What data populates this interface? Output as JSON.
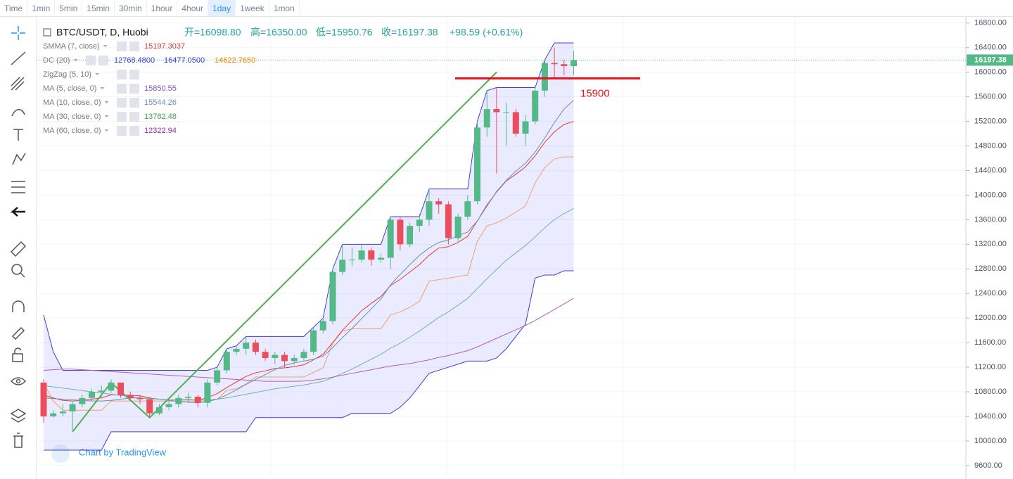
{
  "toolbar": {
    "items": [
      "Time",
      "1min",
      "5min",
      "15min",
      "30min",
      "1hour",
      "4hour",
      "1day",
      "1week",
      "1mon"
    ]
  },
  "legend": {
    "symbol": "BTC/USDT, D, Huobi",
    "ohlc": [
      "开=16098.80",
      "高=16350.00",
      "低=15950.76",
      "收=16197.38"
    ],
    "change": "+98.59 (+0.61%)",
    "indicators": [
      {
        "name": "SMMA (7, close)",
        "values": [
          "15197.3037"
        ],
        "colors": [
          "#e53935"
        ]
      },
      {
        "name": "DC (20)",
        "values": [
          "12768.4800",
          "16477.0500",
          "14622.7650"
        ],
        "colors": [
          "#2f3fd6",
          "#2f3fd6",
          "#f57c00"
        ]
      },
      {
        "name": "ZigZag (5, 10)",
        "values": [],
        "colors": []
      },
      {
        "name": "MA (5, close, 0)",
        "values": [
          "15850.55"
        ],
        "colors": [
          "#7e57c2"
        ]
      },
      {
        "name": "MA (10, close, 0)",
        "values": [
          "15544.26"
        ],
        "colors": [
          "#6a8fb5"
        ]
      },
      {
        "name": "MA (30, close, 0)",
        "values": [
          "13782.48"
        ],
        "colors": [
          "#43a047"
        ]
      },
      {
        "name": "MA (60, close, 0)",
        "values": [
          "12322.94"
        ],
        "colors": [
          "#9c27b0"
        ]
      }
    ]
  },
  "watermark": "Chart by TradingView",
  "chart_data": {
    "type": "candlestick",
    "up_color": "#53b987",
    "down_color": "#eb4d5c",
    "open": [
      10950,
      10400,
      10450,
      10480,
      10600,
      10700,
      10800,
      10820,
      10950,
      10750,
      10700,
      10680,
      10450,
      10550,
      10600,
      10700,
      10720,
      10620,
      10950,
      11150,
      11450,
      11500,
      11600,
      11450,
      11350,
      11400,
      11300,
      11350,
      11450,
      11800,
      11950,
      12750,
      12950,
      12950,
      13100,
      12950,
      12980,
      13600,
      13200,
      13500,
      13600,
      13900,
      13850,
      13300,
      13650,
      13900,
      15100,
      15400,
      15350,
      15350,
      15000,
      15200,
      15700,
      16150,
      16130,
      16098.8
    ],
    "high": [
      11000,
      10500,
      10600,
      10650,
      10750,
      10850,
      10900,
      11000,
      10950,
      10800,
      10750,
      10700,
      10600,
      10650,
      10750,
      10780,
      10750,
      11000,
      11200,
      11500,
      11550,
      11700,
      11650,
      11500,
      11450,
      11450,
      11400,
      11500,
      11850,
      12000,
      12800,
      13200,
      13150,
      13200,
      13150,
      13050,
      13650,
      13650,
      13550,
      13700,
      14100,
      13950,
      13900,
      13700,
      14000,
      15200,
      15700,
      15750,
      15500,
      15400,
      15300,
      15750,
      16200,
      16400,
      16200,
      16350
    ],
    "low": [
      10300,
      10380,
      10400,
      10150,
      10550,
      10650,
      10700,
      10780,
      10700,
      10650,
      10600,
      10380,
      10420,
      10500,
      10550,
      10620,
      10550,
      10550,
      10900,
      11100,
      11400,
      11400,
      11400,
      11300,
      11250,
      11200,
      11250,
      11300,
      11400,
      11750,
      11900,
      12700,
      12850,
      12900,
      12850,
      12900,
      12800,
      13100,
      13150,
      13400,
      13500,
      13700,
      13200,
      13250,
      13600,
      13850,
      14950,
      14350,
      14800,
      14950,
      14800,
      15150,
      15600,
      15900,
      15950,
      15950.76
    ],
    "close": [
      10400,
      10450,
      10480,
      10600,
      10700,
      10800,
      10820,
      10950,
      10750,
      10700,
      10680,
      10450,
      10550,
      10600,
      10700,
      10720,
      10620,
      10950,
      11150,
      11450,
      11500,
      11600,
      11450,
      11350,
      11400,
      11300,
      11350,
      11450,
      11800,
      11950,
      12750,
      12950,
      12950,
      13100,
      12950,
      12980,
      13600,
      13200,
      13500,
      13600,
      13900,
      13850,
      13300,
      13650,
      13900,
      15100,
      15400,
      15350,
      15350,
      15000,
      15200,
      15700,
      16150,
      16130,
      16098.8,
      16197.38
    ],
    "channel": {
      "name": "DC (20)",
      "color": "#3f3fd8",
      "fill": "rgba(110,110,255,0.14)",
      "middle_color": "#f0a070",
      "upper": [
        12050,
        11450,
        11150,
        11150,
        11150,
        11150,
        11150,
        11150,
        11150,
        11150,
        11150,
        11150,
        11150,
        11150,
        11150,
        11150,
        11150,
        11150,
        11200,
        11500,
        11550,
        11700,
        11700,
        11700,
        11700,
        11700,
        11700,
        11700,
        11850,
        12000,
        12800,
        13200,
        13200,
        13200,
        13200,
        13200,
        13650,
        13650,
        13650,
        13650,
        14100,
        14100,
        14100,
        14100,
        14100,
        15200,
        15700,
        15750,
        15750,
        15750,
        15750,
        15750,
        16200,
        16477.05,
        16477.05,
        16477.05
      ],
      "lower": [
        9850,
        9850,
        9850,
        9850,
        9850,
        9850,
        9850,
        10150,
        10150,
        10150,
        10150,
        10150,
        10150,
        10150,
        10150,
        10150,
        10150,
        10150,
        10150,
        10150,
        10150,
        10150,
        10380,
        10380,
        10380,
        10380,
        10380,
        10380,
        10380,
        10380,
        10380,
        10380,
        10450,
        10450,
        10450,
        10450,
        10450,
        10550,
        10700,
        10900,
        11100,
        11150,
        11200,
        11250,
        11300,
        11300,
        11300,
        11350,
        11500,
        11700,
        11900,
        12650,
        12700,
        12700,
        12768.48,
        12768.48
      ],
      "middle": [
        10950,
        10650,
        10500,
        10500,
        10500,
        10500,
        10500,
        10650,
        10650,
        10650,
        10650,
        10650,
        10650,
        10650,
        10650,
        10650,
        10650,
        10650,
        10675,
        10825,
        10850,
        10925,
        11040,
        11040,
        11040,
        11040,
        11040,
        11040,
        11115,
        11190,
        11590,
        11790,
        11825,
        11825,
        11825,
        11825,
        12050,
        12100,
        12175,
        12275,
        12600,
        12625,
        12650,
        12675,
        12700,
        13250,
        13500,
        13550,
        13625,
        13725,
        13825,
        14200,
        14450,
        14588,
        14622.765,
        14622.765
      ]
    },
    "series": [
      {
        "name": "SMMA (7, close)",
        "color": "#e53935",
        "values": [
          10750,
          10700,
          10660,
          10650,
          10660,
          10680,
          10700,
          10750,
          10750,
          10745,
          10735,
          10700,
          10680,
          10665,
          10670,
          10675,
          10665,
          10705,
          10770,
          10870,
          10960,
          11050,
          11110,
          11140,
          11180,
          11190,
          11210,
          11240,
          11320,
          11410,
          11600,
          11800,
          11960,
          12120,
          12240,
          12350,
          12530,
          12630,
          12750,
          12870,
          13020,
          13140,
          13160,
          13230,
          13330,
          13580,
          13840,
          14050,
          14230,
          14340,
          14460,
          14640,
          14860,
          15030,
          15150,
          15197.3
        ]
      },
      {
        "name": "MA (10, close, 0)",
        "color": "#6a8fb5",
        "values": [
          10700,
          10690,
          10680,
          10670,
          10660,
          10650,
          10650,
          10660,
          10680,
          10700,
          10700,
          10690,
          10680,
          10660,
          10640,
          10630,
          10620,
          10640,
          10680,
          10750,
          10830,
          10920,
          11000,
          11080,
          11160,
          11230,
          11270,
          11300,
          11330,
          11380,
          11520,
          11680,
          11830,
          11990,
          12150,
          12310,
          12540,
          12710,
          12870,
          13020,
          13140,
          13230,
          13270,
          13340,
          13400,
          13580,
          13820,
          14060,
          14240,
          14390,
          14520,
          14700,
          14930,
          15180,
          15400,
          15544.26
        ]
      },
      {
        "name": "MA (30, close, 0)",
        "color": "#6fb3a8",
        "values": [
          10900,
          10880,
          10860,
          10840,
          10820,
          10800,
          10780,
          10760,
          10740,
          10720,
          10700,
          10690,
          10680,
          10670,
          10670,
          10670,
          10665,
          10670,
          10680,
          10700,
          10730,
          10760,
          10790,
          10820,
          10850,
          10870,
          10890,
          10910,
          10940,
          10970,
          11030,
          11100,
          11170,
          11250,
          11330,
          11410,
          11510,
          11590,
          11690,
          11790,
          11900,
          12010,
          12100,
          12210,
          12320,
          12480,
          12640,
          12790,
          12940,
          13060,
          13180,
          13320,
          13470,
          13600,
          13700,
          13782.48
        ]
      },
      {
        "name": "MA (60, close, 0)",
        "color": "#b45cb8",
        "values": [
          11150,
          11160,
          11170,
          11170,
          11160,
          11150,
          11140,
          11130,
          11120,
          11110,
          11100,
          11090,
          11080,
          11070,
          11060,
          11050,
          11040,
          11030,
          11020,
          11010,
          11000,
          10990,
          10980,
          10970,
          10970,
          10970,
          10970,
          10975,
          10990,
          11010,
          11040,
          11070,
          11100,
          11130,
          11160,
          11190,
          11220,
          11240,
          11260,
          11290,
          11320,
          11360,
          11390,
          11430,
          11470,
          11530,
          11600,
          11670,
          11740,
          11810,
          11880,
          11960,
          12050,
          12140,
          12230,
          12322.94
        ]
      },
      {
        "name": "ZigZag (5, 10)",
        "color": "#4caf50",
        "x": [
          3,
          7,
          11,
          47
        ],
        "values": [
          10150,
          10950,
          10380,
          16000
        ]
      }
    ],
    "annotation": {
      "label": "15900",
      "value": 15900,
      "color": "#e8101a"
    },
    "last_price_label": "16197.38",
    "ylim": [
      9450,
      16900
    ],
    "yticks": [
      {
        "value": 9600,
        "label": "9600.00"
      },
      {
        "value": 10000,
        "label": "10000.00"
      },
      {
        "value": 10400,
        "label": "10400.00"
      },
      {
        "value": 10800,
        "label": "10800.00"
      },
      {
        "value": 11200,
        "label": "11200.00"
      },
      {
        "value": 11600,
        "label": "11600.00"
      },
      {
        "value": 12000,
        "label": "12000.00"
      },
      {
        "value": 12400,
        "label": "12400.00"
      },
      {
        "value": 12800,
        "label": "12800.00"
      },
      {
        "value": 13200,
        "label": "13200.00"
      },
      {
        "value": 13600,
        "label": "13600.00"
      },
      {
        "value": 14000,
        "label": "14000.00"
      },
      {
        "value": 14400,
        "label": "14400.00"
      },
      {
        "value": 14800,
        "label": "14800.00"
      },
      {
        "value": 15200,
        "label": "15200.00"
      },
      {
        "value": 15600,
        "label": "15600.00"
      },
      {
        "value": 16000,
        "label": "16000.00"
      },
      {
        "value": 16400,
        "label": "16400.00"
      },
      {
        "value": 16800,
        "label": "16800.00"
      }
    ],
    "grid": true
  }
}
